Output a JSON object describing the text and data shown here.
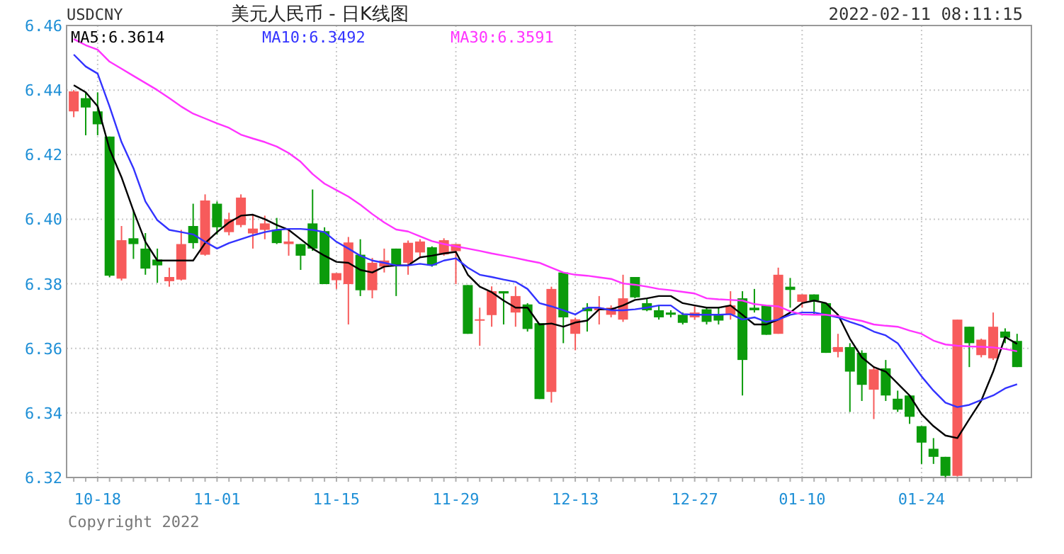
{
  "chart_data": {
    "type": "candlestick",
    "title": "美元人民币 - 日K线图",
    "annotations": [
      "USDCNY",
      "2022-02-11 08:11:15",
      "Copyright 2022"
    ],
    "categories": [
      null,
      null,
      "10-18",
      null,
      null,
      null,
      null,
      null,
      null,
      null,
      null,
      null,
      "11-01",
      null,
      null,
      null,
      null,
      null,
      null,
      null,
      null,
      null,
      "11-15",
      null,
      null,
      null,
      null,
      null,
      null,
      null,
      null,
      null,
      "11-29",
      null,
      null,
      null,
      null,
      null,
      null,
      null,
      null,
      null,
      "12-13",
      null,
      null,
      null,
      null,
      null,
      null,
      null,
      null,
      null,
      "12-27",
      null,
      null,
      null,
      null,
      null,
      null,
      null,
      null,
      "01-10",
      null,
      null,
      null,
      null,
      null,
      null,
      null,
      null,
      null,
      "01-24",
      null,
      null,
      null,
      null,
      null,
      null,
      null,
      null
    ],
    "ohlc": [
      [
        6.4334,
        6.44,
        6.4316,
        6.4396
      ],
      [
        6.4375,
        6.4393,
        6.426,
        6.4346
      ],
      [
        6.4334,
        6.4393,
        6.426,
        6.4294
      ],
      [
        6.4256,
        6.4256,
        6.382,
        6.3825
      ],
      [
        6.3816,
        6.3979,
        6.381,
        6.3935
      ],
      [
        6.3941,
        6.4029,
        6.3877,
        6.3923
      ],
      [
        6.3909,
        6.3957,
        6.3828,
        6.3847
      ],
      [
        6.3875,
        6.3909,
        6.3803,
        6.3857
      ],
      [
        6.3808,
        6.385,
        6.3791,
        6.3821
      ],
      [
        6.3813,
        6.3967,
        6.381,
        6.3923
      ],
      [
        6.3979,
        6.4048,
        6.3909,
        6.3926
      ],
      [
        6.389,
        6.4077,
        6.3887,
        6.4058
      ],
      [
        6.4048,
        6.4055,
        6.3953,
        6.3975
      ],
      [
        6.396,
        6.402,
        6.395,
        6.4
      ],
      [
        6.3982,
        6.4077,
        6.3975,
        6.4067
      ],
      [
        6.3956,
        6.4015,
        6.3909,
        6.3971
      ],
      [
        6.3967,
        6.4011,
        6.3938,
        6.3987
      ],
      [
        6.3967,
        6.4004,
        6.3923,
        6.3926
      ],
      [
        6.3923,
        6.3967,
        6.3887,
        6.3931
      ],
      [
        6.3923,
        6.3923,
        6.3843,
        6.3887
      ],
      [
        6.3987,
        6.4092,
        6.3902,
        6.3909
      ],
      [
        6.3963,
        6.3975,
        6.3799,
        6.3799
      ],
      [
        6.3811,
        6.3833,
        6.3784,
        6.3833
      ],
      [
        6.3799,
        6.3945,
        6.3674,
        6.3928
      ],
      [
        6.389,
        6.3938,
        6.3762,
        6.378
      ],
      [
        6.378,
        6.388,
        6.3755,
        6.3865
      ],
      [
        6.3853,
        6.3909,
        6.3835,
        6.3872
      ],
      [
        6.3909,
        6.3909,
        6.3762,
        6.3857
      ],
      [
        6.3865,
        6.3934,
        6.3828,
        6.3927
      ],
      [
        6.3897,
        6.3938,
        6.388,
        6.3931
      ],
      [
        6.3913,
        6.3916,
        6.3853,
        6.3857
      ],
      [
        6.3891,
        6.3941,
        6.3887,
        6.3935
      ],
      [
        6.3901,
        6.3923,
        6.3799,
        6.3923
      ],
      [
        6.3796,
        6.3796,
        6.3645,
        6.3645
      ],
      [
        6.3686,
        6.3726,
        6.3608,
        6.369
      ],
      [
        6.3703,
        6.3792,
        6.3667,
        6.3777
      ],
      [
        6.3777,
        6.3777,
        6.3674,
        6.377
      ],
      [
        6.3711,
        6.3792,
        6.3667,
        6.3762
      ],
      [
        6.3736,
        6.374,
        6.3652,
        6.366
      ],
      [
        6.3678,
        6.3678,
        6.3443,
        6.3443
      ],
      [
        6.3465,
        6.3791,
        6.3432,
        6.3784
      ],
      [
        6.3835,
        6.3835,
        6.3616,
        6.3696
      ],
      [
        6.3645,
        6.3695,
        6.3594,
        6.369
      ],
      [
        6.3726,
        6.374,
        6.3652,
        6.3715
      ],
      [
        6.3718,
        6.3762,
        6.3674,
        6.3726
      ],
      [
        6.3704,
        6.3733,
        6.3696,
        6.3726
      ],
      [
        6.3689,
        6.3828,
        6.3682,
        6.3755
      ],
      [
        6.3821,
        6.3821,
        6.3755,
        6.3758
      ],
      [
        6.374,
        6.3755,
        6.3715,
        6.3718
      ],
      [
        6.3718,
        6.3733,
        6.3689,
        6.3696
      ],
      [
        6.3711,
        6.3718,
        6.3696,
        6.3704
      ],
      [
        6.3704,
        6.3711,
        6.3674,
        6.3679
      ],
      [
        6.3696,
        6.373,
        6.3689,
        6.3711
      ],
      [
        6.3721,
        6.3726,
        6.3674,
        6.3682
      ],
      [
        6.3704,
        6.3726,
        6.3674,
        6.3686
      ],
      [
        6.3704,
        6.3777,
        6.3689,
        6.3733
      ],
      [
        6.3755,
        6.3777,
        6.3454,
        6.3564
      ],
      [
        6.3726,
        6.3784,
        6.3711,
        6.3718
      ],
      [
        6.3733,
        6.3733,
        6.3642,
        6.3642
      ],
      [
        6.3645,
        6.385,
        6.3645,
        6.3828
      ],
      [
        6.3791,
        6.3818,
        6.3726,
        6.3781
      ],
      [
        6.3744,
        6.3767,
        6.3726,
        6.3767
      ],
      [
        6.3767,
        6.3767,
        6.3704,
        6.3748
      ],
      [
        6.374,
        6.374,
        6.3586,
        6.3586
      ],
      [
        6.3589,
        6.3645,
        6.3572,
        6.3604
      ],
      [
        6.3604,
        6.3616,
        6.3403,
        6.3528
      ],
      [
        6.3586,
        6.3594,
        6.3437,
        6.3487
      ],
      [
        6.3472,
        6.3545,
        6.3381,
        6.3535
      ],
      [
        6.3538,
        6.3564,
        6.3437,
        6.3454
      ],
      [
        6.3444,
        6.3469,
        6.3403,
        6.341
      ],
      [
        6.3454,
        6.3454,
        6.3366,
        6.3388
      ],
      [
        6.3359,
        6.3359,
        6.3242,
        6.3308
      ],
      [
        6.3289,
        6.3322,
        6.3242,
        6.3264
      ],
      [
        6.3264,
        6.3264,
        6.32,
        6.3205
      ],
      [
        6.3205,
        6.3689,
        6.3203,
        6.3689
      ],
      [
        6.3667,
        6.3667,
        6.3542,
        6.3616
      ],
      [
        6.3579,
        6.363,
        6.3572,
        6.3627
      ],
      [
        6.3569,
        6.3711,
        6.3564,
        6.3667
      ],
      [
        6.3652,
        6.3662,
        6.3616,
        6.3633
      ],
      [
        6.3623,
        6.3645,
        6.3542,
        6.3542
      ]
    ],
    "series": [
      {
        "name": "MA5:6.3614",
        "type": "line",
        "color": "#000000",
        "values": [
          6.4415,
          6.4393,
          6.435,
          6.4217,
          6.413,
          6.4026,
          6.393,
          6.3872,
          6.3872,
          6.3872,
          6.3872,
          6.3926,
          6.396,
          6.399,
          6.4011,
          6.4014,
          6.4,
          6.3982,
          6.3967,
          6.3938,
          6.3909,
          6.3887,
          6.3868,
          6.3865,
          6.3843,
          6.3835,
          6.3853,
          6.3857,
          6.3857,
          6.3882,
          6.3887,
          6.3894,
          6.3899,
          6.3828,
          6.3791,
          6.3774,
          6.3748,
          6.3726,
          6.3726,
          6.3674,
          6.3677,
          6.3667,
          6.368,
          6.3686,
          6.3721,
          6.3721,
          6.3733,
          6.375,
          6.3755,
          6.3762,
          6.3762,
          6.374,
          6.3733,
          6.3726,
          6.3726,
          6.3733,
          6.3704,
          6.3674,
          6.3674,
          6.3689,
          6.3711,
          6.374,
          6.3748,
          6.374,
          6.3704,
          6.363,
          6.3572,
          6.3542,
          6.3528,
          6.3491,
          6.3454,
          6.3396,
          6.3359,
          6.333,
          6.3322,
          6.3381,
          6.3438,
          6.3528,
          6.3635,
          6.3614
        ]
      },
      {
        "name": "MA10:6.3492",
        "type": "line",
        "color": "#3333ff",
        "values": [
          6.451,
          6.4473,
          6.4451,
          6.4349,
          6.4239,
          6.4158,
          6.4055,
          6.3997,
          6.3967,
          6.396,
          6.3953,
          6.393,
          6.3909,
          6.3926,
          6.3938,
          6.395,
          6.396,
          6.3967,
          6.397,
          6.397,
          6.3967,
          6.396,
          6.393,
          6.3909,
          6.3887,
          6.3872,
          6.3865,
          6.3857,
          6.3857,
          6.3862,
          6.3857,
          6.3872,
          6.3879,
          6.385,
          6.3828,
          6.3821,
          6.3813,
          6.3806,
          6.3784,
          6.374,
          6.373,
          6.3718,
          6.3705,
          6.3726,
          6.3726,
          6.3718,
          6.3718,
          6.3721,
          6.3726,
          6.3733,
          6.3733,
          6.3706,
          6.3704,
          6.3704,
          6.3704,
          6.3706,
          6.3689,
          6.3696,
          6.3682,
          6.3689,
          6.3704,
          6.3711,
          6.3711,
          6.3704,
          6.3696,
          6.3682,
          6.367,
          6.3652,
          6.364,
          6.3616,
          6.3564,
          6.3513,
          6.3469,
          6.3432,
          6.3418,
          6.3425,
          6.344,
          6.3454,
          6.3476,
          6.3489
        ]
      },
      {
        "name": "MA30:6.3591",
        "type": "line",
        "color": "#ff33ff",
        "values": [
          6.4558,
          6.4539,
          6.4525,
          6.4488,
          6.4466,
          6.4444,
          6.4422,
          6.44,
          6.4375,
          6.4349,
          6.4327,
          6.4312,
          6.4297,
          6.4283,
          6.4262,
          6.425,
          6.4239,
          6.4225,
          6.4205,
          6.4178,
          6.414,
          6.411,
          6.409,
          6.407,
          6.4045,
          6.4016,
          6.399,
          6.3968,
          6.3962,
          6.3947,
          6.3932,
          6.3923,
          6.3916,
          6.3909,
          6.3902,
          6.3894,
          6.3887,
          6.388,
          6.3872,
          6.3865,
          6.385,
          6.3835,
          6.3828,
          6.3825,
          6.382,
          6.3815,
          6.3801,
          6.3797,
          6.3791,
          6.3784,
          6.378,
          6.3775,
          6.377,
          6.3755,
          6.3752,
          6.375,
          6.3748,
          6.3737,
          6.3733,
          6.373,
          6.3715,
          6.3705,
          6.3704,
          6.3704,
          6.37,
          6.3692,
          6.3685,
          6.3674,
          6.367,
          6.3667,
          6.3655,
          6.3645,
          6.3624,
          6.3612,
          6.3608,
          6.3606,
          6.3605,
          6.3603,
          6.3598,
          6.3591
        ]
      }
    ],
    "ylim": [
      6.32,
      6.46
    ],
    "yticks": [
      6.32,
      6.34,
      6.36,
      6.38,
      {
        "value": 6.4,
        "label": "6.40"
      },
      6.42,
      6.44,
      6.46
    ],
    "grid": true,
    "legend": "top"
  }
}
